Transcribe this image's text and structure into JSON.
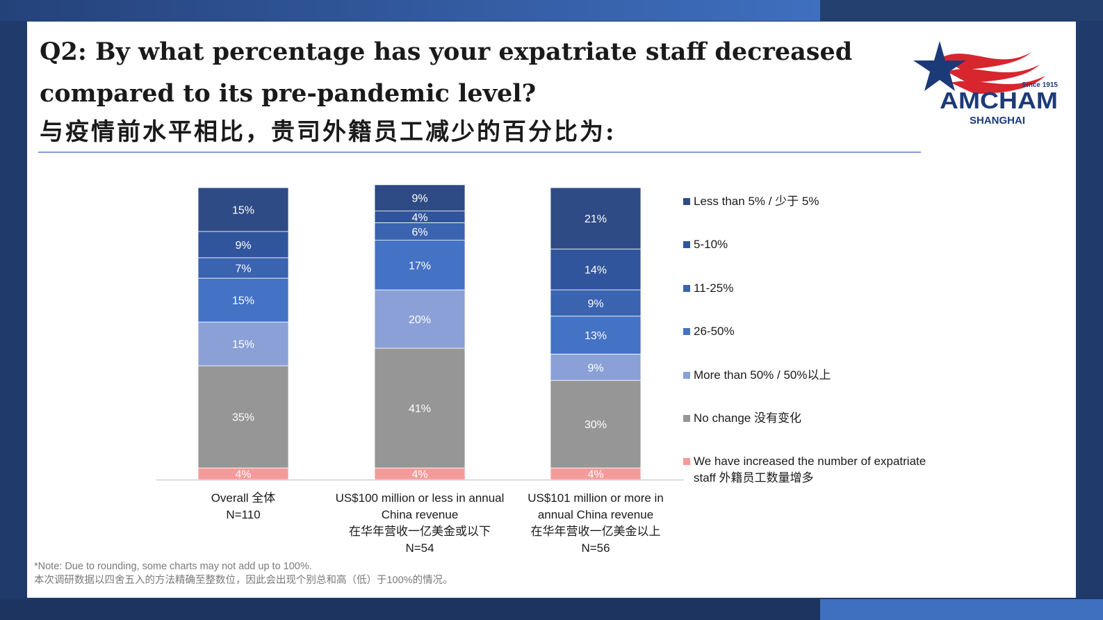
{
  "title_en": "Q2: By what percentage has your expatriate staff decreased compared to its pre-pandemic level?",
  "title_zh": "与疫情前水平相比，贵司外籍员工减少的百分比为:",
  "logo": {
    "since": "Since 1915",
    "name": "AMCHAM",
    "city": "SHANGHAI"
  },
  "note": {
    "en": "*Note: Due to rounding, some charts may not add up to 100%.",
    "zh": "本次调研数据以四舍五入的方法精确至整数位，因此会出现个别总和高（低）于100%的情况。"
  },
  "colors": {
    "lt5": "#2f4b86",
    "5_10": "#31559c",
    "11_25": "#3a63b0",
    "26_50": "#4472c4",
    "gt50": "#8aa0d6",
    "nochange": "#969696",
    "increased": "#f59a9a",
    "accent": "#3f6fbf"
  },
  "chart_data": {
    "type": "bar",
    "stacked": true,
    "categories": [
      [
        "Overall 全体",
        "N=110"
      ],
      [
        "US$100 million or less in annual",
        "China revenue",
        "在华年营收一亿美金或以下",
        "N=54"
      ],
      [
        "US$101 million or more in",
        "annual China revenue",
        "在华年营收一亿美金以上",
        "N=56"
      ]
    ],
    "series": [
      {
        "name": "We have increased the number of expatriate staff 外籍员工数量增多",
        "legend_lines": [
          "We have increased the number of expatriate",
          "staff 外籍员工数量增多"
        ],
        "color_key": "increased",
        "values": [
          4,
          4,
          4
        ],
        "labels": [
          "4%",
          "4%",
          "4%"
        ]
      },
      {
        "name": "No change 没有变化",
        "legend_lines": [
          "No change 没有变化"
        ],
        "color_key": "nochange",
        "values": [
          35,
          41,
          30
        ],
        "labels": [
          "35%",
          "41%",
          "30%"
        ]
      },
      {
        "name": "More than 50% / 50%以上",
        "legend_lines": [
          "More than 50% / 50%以上"
        ],
        "color_key": "gt50",
        "values": [
          15,
          20,
          9
        ],
        "labels": [
          "15%",
          "20%",
          "9%"
        ]
      },
      {
        "name": "26-50%",
        "legend_lines": [
          "26-50%"
        ],
        "color_key": "26_50",
        "values": [
          15,
          17,
          13
        ],
        "labels": [
          "15%",
          "17%",
          "13%"
        ]
      },
      {
        "name": "11-25%",
        "legend_lines": [
          "11-25%"
        ],
        "color_key": "11_25",
        "values": [
          7,
          6,
          9
        ],
        "labels": [
          "7%",
          "6%",
          "9%"
        ]
      },
      {
        "name": "5-10%",
        "legend_lines": [
          "5-10%"
        ],
        "color_key": "5_10",
        "values": [
          9,
          4,
          14
        ],
        "labels": [
          "9%",
          "4%",
          "14%"
        ]
      },
      {
        "name": "Less than 5% / 少于 5%",
        "legend_lines": [
          "Less than 5% / 少于 5%"
        ],
        "color_key": "lt5",
        "values": [
          15,
          9,
          21
        ],
        "labels": [
          "15%",
          "9%",
          "21%"
        ]
      }
    ],
    "legend_order": [
      6,
      5,
      4,
      3,
      2,
      1,
      0
    ],
    "legend_position": "right",
    "ylim": [
      0,
      100
    ],
    "grid": false
  }
}
